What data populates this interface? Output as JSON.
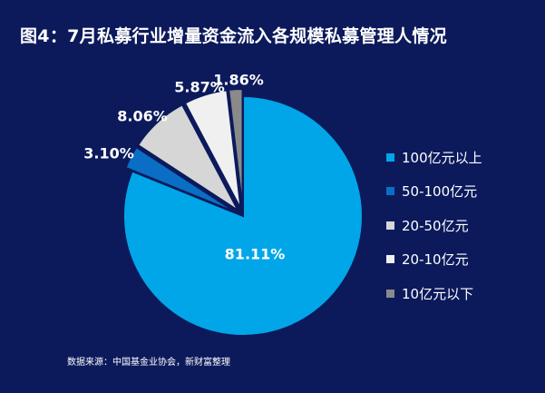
{
  "title": "图4：7月私募行业增量资金流入各规模私募管理人情况",
  "source": "数据来源：中国基金业协会，新财富整理",
  "chart_data": {
    "type": "pie",
    "categories": [
      "100亿元以上",
      "50-100亿元",
      "20-50亿元",
      "20-10亿元",
      "10亿元以下"
    ],
    "values": [
      81.11,
      3.1,
      8.06,
      5.87,
      1.86
    ],
    "labels": [
      "81.11%",
      "3.10%",
      "8.06%",
      "5.87%",
      "1.86%"
    ],
    "colors": [
      "#00a6e8",
      "#0a6fc4",
      "#d6d6d6",
      "#f0f0f0",
      "#8a8a8a"
    ],
    "legend": "right"
  }
}
